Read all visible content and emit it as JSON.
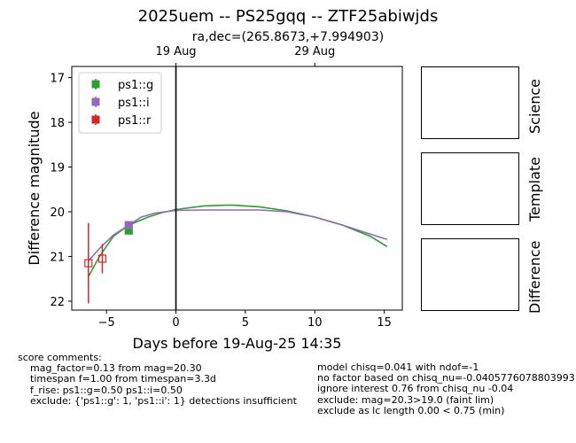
{
  "title": "2025uem -- PS25gqq -- ZTF25abiwjds",
  "radec": "ra,dec=(265.8673,+7.994903)",
  "chart_data": {
    "type": "line",
    "title": "2025uem -- PS25gqq -- ZTF25abiwjds",
    "xlabel": "Days before 19-Aug-25 14:35",
    "ylabel": "Difference magnitude",
    "xlim": [
      -7.5,
      16.3
    ],
    "ylim": [
      22.2,
      16.75
    ],
    "y_inverted": true,
    "x_ticks": [
      -5,
      0,
      5,
      10,
      15
    ],
    "x_tick_labels": [
      "−5",
      "0",
      "5",
      "10",
      "15"
    ],
    "y_ticks": [
      17,
      18,
      19,
      20,
      21,
      22
    ],
    "y_tick_labels": [
      "17",
      "18",
      "19",
      "20",
      "21",
      "22"
    ],
    "top_axis_ticks": [
      0,
      10
    ],
    "top_axis_labels": [
      "19 Aug",
      "29 Aug"
    ],
    "vline_x": 0,
    "grid": false,
    "legend_position": "upper-left",
    "series": [
      {
        "name": "ps1::g",
        "color": "#2ca02c",
        "marker": "square-filled",
        "points": [
          {
            "x": -3.4,
            "y": 20.42,
            "yerr": 0.06
          }
        ],
        "curve": [
          [
            -6.3,
            21.45
          ],
          [
            -5.5,
            21.0
          ],
          [
            -4.5,
            20.55
          ],
          [
            -3.4,
            20.3
          ],
          [
            -2.0,
            20.12
          ],
          [
            -1.0,
            20.02
          ],
          [
            0.0,
            19.95
          ],
          [
            2.0,
            19.87
          ],
          [
            4.0,
            19.85
          ],
          [
            6.0,
            19.89
          ],
          [
            8.0,
            19.98
          ],
          [
            10.0,
            20.12
          ],
          [
            12.0,
            20.3
          ],
          [
            14.0,
            20.55
          ],
          [
            15.2,
            20.78
          ]
        ]
      },
      {
        "name": "ps1::i",
        "color": "#9467bd",
        "marker": "square-filled",
        "points": [
          {
            "x": -3.4,
            "y": 20.3,
            "yerr": 0.08
          }
        ],
        "curve": [
          [
            -6.3,
            21.1
          ],
          [
            -5.5,
            20.82
          ],
          [
            -4.5,
            20.52
          ],
          [
            -3.4,
            20.3
          ],
          [
            -2.5,
            20.12
          ],
          [
            -1.5,
            20.03
          ],
          [
            0.0,
            19.97
          ],
          [
            2.0,
            19.96
          ],
          [
            4.0,
            19.96
          ],
          [
            6.0,
            19.96
          ],
          [
            8.0,
            20.0
          ],
          [
            10.0,
            20.12
          ],
          [
            12.0,
            20.3
          ],
          [
            14.0,
            20.5
          ],
          [
            15.2,
            20.62
          ]
        ]
      },
      {
        "name": "ps1::r",
        "color": "#d62728",
        "marker": "square-open",
        "points": [
          {
            "x": -6.3,
            "y": 21.15,
            "yerr": 0.9
          },
          {
            "x": -5.3,
            "y": 21.05,
            "yerr": 0.33
          }
        ],
        "curve": []
      }
    ]
  },
  "panels": [
    {
      "label": "Science"
    },
    {
      "label": "Template"
    },
    {
      "label": "Difference"
    }
  ],
  "score_comments": {
    "heading": "score comments:",
    "lines": [
      "mag_factor=0.13 from mag=20.30",
      "timespan f=1.00 from timespan=3.3d",
      "f_rise: ps1::g=0.50 ps1::i=0.50",
      "exclude: {'ps1::g': 1, 'ps1::i': 1} detections insufficient"
    ]
  },
  "right_notes": [
    "model chisq=0.041 with ndof=-1",
    "no factor based on chisq_nu=-0.0405776078803993",
    "ignore interest 0.76 from chisq_nu -0.04",
    "exclude: mag=20.3>19.0 (faint lim)",
    "exclude as lc length 0.00 < 0.75 (min)"
  ]
}
